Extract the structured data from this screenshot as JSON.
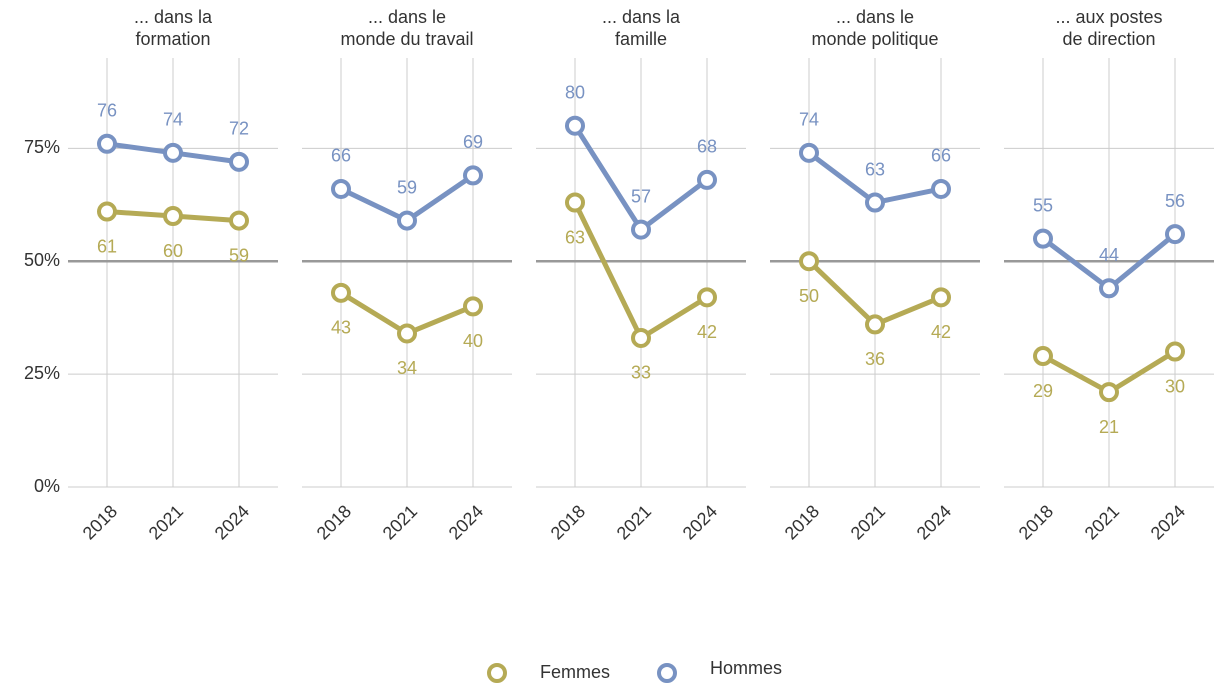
{
  "chart_data": [
    {
      "type": "line",
      "title": "... dans la formation",
      "categories": [
        "2018",
        "2021",
        "2024"
      ],
      "series": [
        {
          "name": "Femmes",
          "color": "#b5aa55",
          "values": [
            61,
            60,
            59
          ]
        },
        {
          "name": "Hommes",
          "color": "#7892c2",
          "values": [
            76,
            74,
            72
          ]
        }
      ],
      "ylim": [
        0,
        95
      ],
      "yticks": [
        {
          "value": 0,
          "label": "0%"
        },
        {
          "value": 25,
          "label": "25%"
        },
        {
          "value": 50,
          "label": "50%"
        },
        {
          "value": 75,
          "label": "75%"
        }
      ],
      "hline": 50,
      "grid": true
    },
    {
      "type": "line",
      "title": "... dans le monde du travail",
      "categories": [
        "2018",
        "2021",
        "2024"
      ],
      "series": [
        {
          "name": "Femmes",
          "color": "#b5aa55",
          "values": [
            43,
            34,
            40
          ]
        },
        {
          "name": "Hommes",
          "color": "#7892c2",
          "values": [
            66,
            59,
            69
          ]
        }
      ],
      "ylim": [
        0,
        95
      ],
      "yticks": [
        0,
        25,
        50,
        75
      ],
      "hline": 50,
      "grid": true
    },
    {
      "type": "line",
      "title": "... dans la famille",
      "categories": [
        "2018",
        "2021",
        "2024"
      ],
      "series": [
        {
          "name": "Femmes",
          "color": "#b5aa55",
          "values": [
            63,
            33,
            42
          ]
        },
        {
          "name": "Hommes",
          "color": "#7892c2",
          "values": [
            80,
            57,
            68
          ]
        }
      ],
      "ylim": [
        0,
        95
      ],
      "yticks": [
        0,
        25,
        50,
        75
      ],
      "hline": 50,
      "grid": true
    },
    {
      "type": "line",
      "title": "... dans le monde politique",
      "categories": [
        "2018",
        "2021",
        "2024"
      ],
      "series": [
        {
          "name": "Femmes",
          "color": "#b5aa55",
          "values": [
            50,
            36,
            42
          ]
        },
        {
          "name": "Hommes",
          "color": "#7892c2",
          "values": [
            74,
            63,
            66
          ]
        }
      ],
      "ylim": [
        0,
        95
      ],
      "yticks": [
        0,
        25,
        50,
        75
      ],
      "hline": 50,
      "grid": true
    },
    {
      "type": "line",
      "title": "... aux postes de direction",
      "categories": [
        "2018",
        "2021",
        "2024"
      ],
      "series": [
        {
          "name": "Femmes",
          "color": "#b5aa55",
          "values": [
            29,
            21,
            30
          ]
        },
        {
          "name": "Hommes",
          "color": "#7892c2",
          "values": [
            55,
            44,
            56
          ]
        }
      ],
      "ylim": [
        0,
        95
      ],
      "yticks": [
        0,
        25,
        50,
        75
      ],
      "hline": 50,
      "grid": true
    }
  ]
}
